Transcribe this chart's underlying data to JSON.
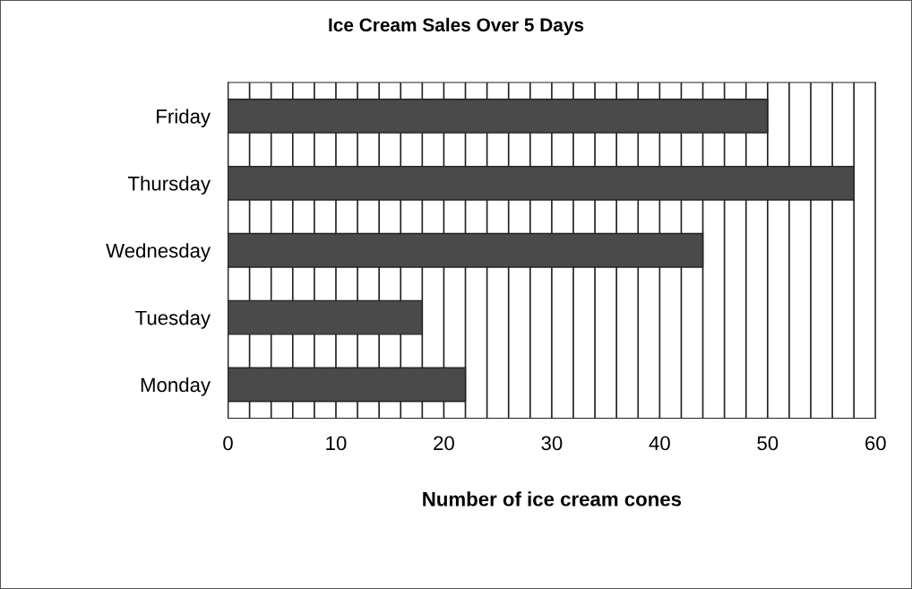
{
  "chart_data": {
    "type": "bar",
    "orientation": "horizontal",
    "title": "Ice Cream Sales Over 5 Days",
    "xlabel": "Number of ice cream cones",
    "categories": [
      "Friday",
      "Thursday",
      "Wednesday",
      "Tuesday",
      "Monday"
    ],
    "values": [
      50,
      58,
      44,
      18,
      22
    ],
    "color": "#4a4a4a",
    "xlim": [
      0,
      60
    ],
    "xticks": [
      0,
      {
        "value": 2,
        "label": null
      },
      {
        "value": 4,
        "label": null
      },
      {
        "value": 6,
        "label": null
      },
      {
        "value": 8,
        "label": null
      },
      10,
      {
        "value": 12,
        "label": null
      },
      {
        "value": 14,
        "label": null
      },
      {
        "value": 16,
        "label": null
      },
      {
        "value": 18,
        "label": null
      },
      20,
      {
        "value": 22,
        "label": null
      },
      {
        "value": 24,
        "label": null
      },
      {
        "value": 26,
        "label": null
      },
      {
        "value": 28,
        "label": null
      },
      30,
      {
        "value": 32,
        "label": null
      },
      {
        "value": 34,
        "label": null
      },
      {
        "value": 36,
        "label": null
      },
      {
        "value": 38,
        "label": null
      },
      40,
      {
        "value": 42,
        "label": null
      },
      {
        "value": 44,
        "label": null
      },
      {
        "value": 46,
        "label": null
      },
      {
        "value": 48,
        "label": null
      },
      50,
      {
        "value": 52,
        "label": null
      },
      {
        "value": 54,
        "label": null
      },
      {
        "value": 56,
        "label": null
      },
      {
        "value": 58,
        "label": null
      },
      60
    ],
    "grid": "x",
    "legend": false
  }
}
